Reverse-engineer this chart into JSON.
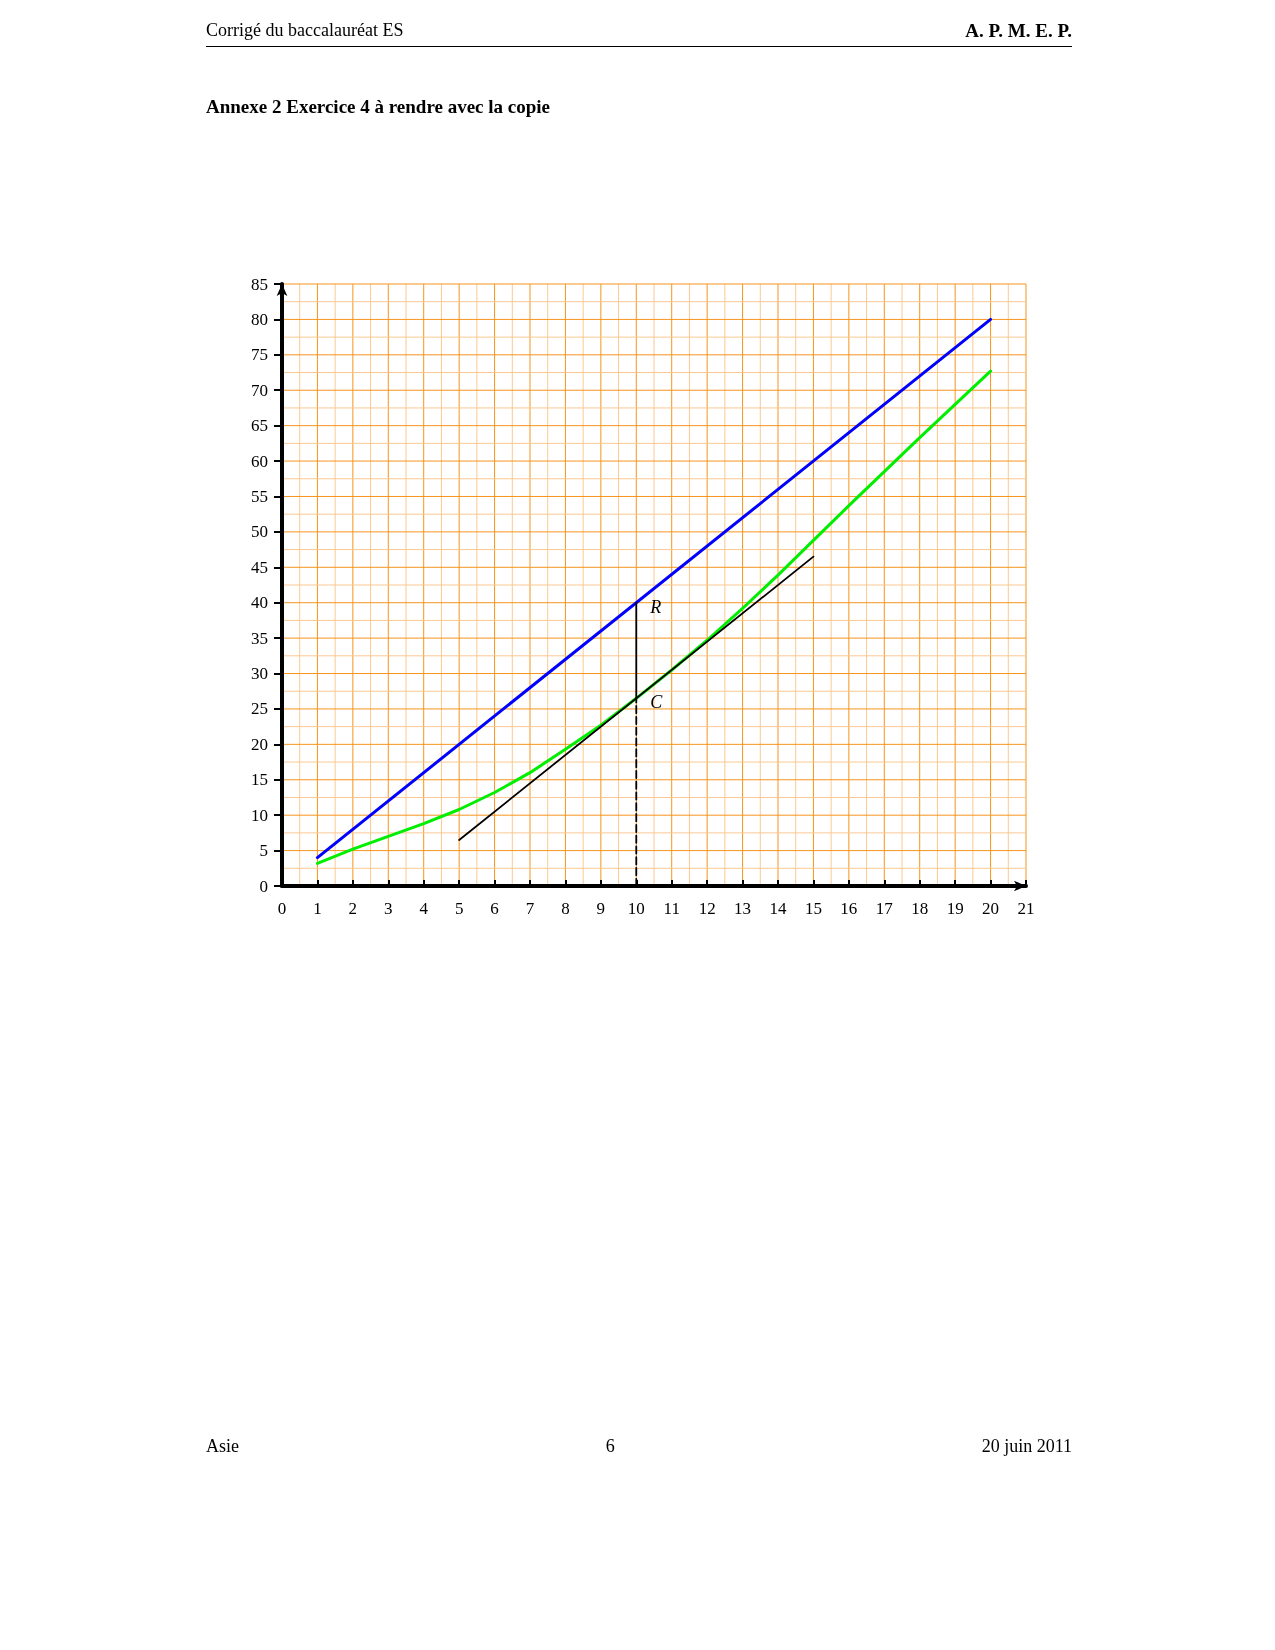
{
  "chart_data": {
    "type": "line",
    "title": "Annexe 2 Exercice 4 à rendre avec la copie",
    "annotations": [
      "Corrigé du baccalauréat ES",
      "A. P. M. E. P.",
      {
        "text": "R",
        "x": 10,
        "y": 40
      },
      {
        "text": "C",
        "x": 10,
        "y": 26.5
      },
      "Asie",
      "6",
      "20 juin 2011"
    ],
    "xlim": [
      0,
      21
    ],
    "xticks": [
      0,
      {
        "value": 0.5,
        "label": null
      },
      1,
      {
        "value": 1.5,
        "label": null
      },
      2,
      {
        "value": 2.5,
        "label": null
      },
      3,
      {
        "value": 3.5,
        "label": null
      },
      4,
      {
        "value": 4.5,
        "label": null
      },
      5,
      {
        "value": 5.5,
        "label": null
      },
      6,
      {
        "value": 6.5,
        "label": null
      },
      7,
      {
        "value": 7.5,
        "label": null
      },
      8,
      {
        "value": 8.5,
        "label": null
      },
      9,
      {
        "value": 9.5,
        "label": null
      },
      10,
      {
        "value": 10.5,
        "label": null
      },
      11,
      {
        "value": 11.5,
        "label": null
      },
      12,
      {
        "value": 12.5,
        "label": null
      },
      13,
      {
        "value": 13.5,
        "label": null
      },
      14,
      {
        "value": 14.5,
        "label": null
      },
      15,
      {
        "value": 15.5,
        "label": null
      },
      16,
      {
        "value": 16.5,
        "label": null
      },
      17,
      {
        "value": 17.5,
        "label": null
      },
      18,
      {
        "value": 18.5,
        "label": null
      },
      19,
      {
        "value": 19.5,
        "label": null
      },
      20,
      {
        "value": 20.5,
        "label": null
      },
      21
    ],
    "ylim": [
      0,
      85
    ],
    "yticks": [
      0,
      {
        "value": 2.5,
        "label": null
      },
      5,
      {
        "value": 7.5,
        "label": null
      },
      10,
      {
        "value": 12.5,
        "label": null
      },
      15,
      {
        "value": 17.5,
        "label": null
      },
      20,
      {
        "value": 22.5,
        "label": null
      },
      25,
      {
        "value": 27.5,
        "label": null
      },
      30,
      {
        "value": 32.5,
        "label": null
      },
      35,
      {
        "value": 37.5,
        "label": null
      },
      40,
      {
        "value": 42.5,
        "label": null
      },
      45,
      {
        "value": 47.5,
        "label": null
      },
      50,
      {
        "value": 52.5,
        "label": null
      },
      55,
      {
        "value": 57.5,
        "label": null
      },
      60,
      {
        "value": 62.5,
        "label": null
      },
      65,
      {
        "value": 67.5,
        "label": null
      },
      70,
      {
        "value": 72.5,
        "label": null
      },
      75,
      {
        "value": 77.5,
        "label": null
      },
      80,
      {
        "value": 82.5,
        "label": null
      },
      85
    ],
    "grid": true,
    "marker": "none",
    "series": [
      {
        "color": "#0000ff",
        "x": [
          1,
          20
        ],
        "values": [
          4,
          80
        ]
      },
      {
        "color": "#00ee00",
        "x": [
          1,
          2,
          3,
          4,
          5,
          6,
          7,
          8,
          9,
          10,
          11,
          12,
          13,
          14,
          15,
          16,
          17,
          18,
          19,
          20
        ],
        "values": [
          3.2,
          5.2,
          7,
          8.8,
          10.8,
          13.2,
          16,
          19.3,
          22.7,
          26.5,
          30.5,
          34.7,
          39.2,
          43.9,
          48.8,
          53.7,
          58.5,
          63.3,
          68,
          72.7
        ]
      },
      {
        "color": "#000000",
        "x": [
          5,
          15
        ],
        "values": [
          6.5,
          46.5
        ]
      },
      {
        "color": "#000000",
        "x": [
          10,
          10
        ],
        "values": [
          26.5,
          40
        ]
      },
      {
        "color": "#000000",
        "x": [
          10,
          10
        ],
        "values": [
          0,
          26.5
        ],
        "line_style": "dashed"
      }
    ]
  }
}
